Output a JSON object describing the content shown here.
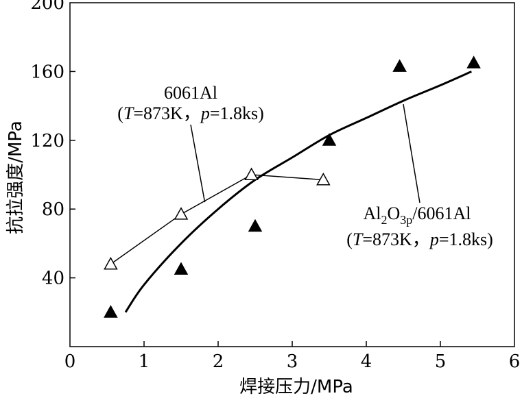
{
  "chart_data": {
    "type": "scatter",
    "xlabel": "焊接压力/MPa",
    "ylabel": "抗拉强度/MPa",
    "xlim": [
      0,
      6
    ],
    "ylim": [
      0,
      200
    ],
    "x_ticks": [
      "0",
      "1",
      "2",
      "3",
      "4",
      "5",
      "6"
    ],
    "y_ticks": [
      "40",
      "80",
      "120",
      "160",
      "200"
    ],
    "grid": false,
    "legend": "none",
    "series": [
      {
        "name": "6061Al",
        "condition": "(T=873K，p=1.8ks)",
        "marker": "open-triangle",
        "line": "connected",
        "x": [
          0.55,
          1.5,
          2.45,
          3.42
        ],
        "y": [
          48,
          77,
          100,
          97
        ]
      },
      {
        "name": "Al2O3p/6061Al",
        "condition": "(T=873K，p=1.8ks)",
        "marker": "filled-triangle",
        "line": "none",
        "x": [
          0.55,
          1.5,
          2.5,
          3.5,
          4.45,
          5.45
        ],
        "y": [
          20,
          45,
          70,
          120,
          163,
          165
        ]
      },
      {
        "name": "Al2O3p/6061Al",
        "marker": "none",
        "line": "smooth-fit",
        "x": [
          0.75,
          1.0,
          1.5,
          2.0,
          2.5,
          3.0,
          3.5,
          4.0,
          4.5,
          5.0,
          5.42
        ],
        "y": [
          20,
          36,
          60,
          80,
          97,
          110,
          123,
          133,
          143,
          152,
          160
        ]
      }
    ],
    "annotations": [
      {
        "line1": "6061Al",
        "line2_parts": [
          "(",
          "T",
          "=873K，",
          "p",
          "=1.8ks)"
        ]
      },
      {
        "line1_parts": [
          "Al",
          "2",
          "O",
          "3p",
          "/6061Al"
        ],
        "line2_parts": [
          "(",
          "T",
          "=873K，",
          "p",
          "=1.8ks)"
        ]
      }
    ]
  }
}
